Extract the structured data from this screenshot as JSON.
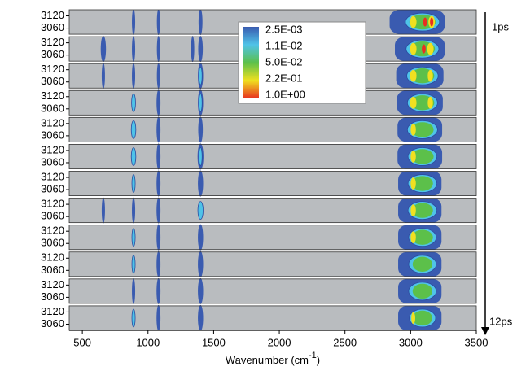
{
  "chart_data": {
    "type": "contour-stack",
    "x_label": "Wavenumber (cm",
    "x_label_sup": "-1",
    "x_label_end": ")",
    "xlim": [
      400,
      3500
    ],
    "xticks": [
      500,
      1000,
      1500,
      2000,
      2500,
      3000,
      3500
    ],
    "panel_ylim": [
      3030,
      3150
    ],
    "panel_yticks": [
      3060,
      3120
    ],
    "time_start": "1ps",
    "time_end": "12ps",
    "background": "#b9bcbf",
    "colorbar": {
      "labels": [
        "2.5E-03",
        "1.1E-02",
        "5.0E-02",
        "2.2E-01",
        "1.0E+00"
      ],
      "colors": [
        "#3a5bb0",
        "#4fc3e8",
        "#5cc04a",
        "#f0e020",
        "#e83020"
      ]
    },
    "panels": [
      {
        "features": [
          [
            3050,
            420,
            0
          ],
          [
            3090,
            260,
            1
          ],
          [
            3090,
            200,
            2
          ],
          [
            3020,
            50,
            3
          ],
          [
            3160,
            50,
            3
          ],
          [
            3110,
            30,
            4
          ],
          [
            3160,
            25,
            4
          ],
          [
            890,
            12,
            0
          ],
          [
            1080,
            15,
            0
          ],
          [
            1400,
            30,
            0
          ]
        ]
      },
      {
        "features": [
          [
            3070,
            380,
            0
          ],
          [
            3090,
            250,
            1
          ],
          [
            3090,
            190,
            2
          ],
          [
            3020,
            50,
            3
          ],
          [
            3150,
            50,
            3
          ],
          [
            3100,
            30,
            4
          ],
          [
            660,
            40,
            0
          ],
          [
            890,
            12,
            0
          ],
          [
            1080,
            15,
            0
          ],
          [
            1340,
            20,
            0
          ],
          [
            1400,
            35,
            0
          ]
        ]
      },
      {
        "features": [
          [
            3070,
            360,
            0
          ],
          [
            3090,
            240,
            1
          ],
          [
            3090,
            180,
            2
          ],
          [
            3020,
            50,
            3
          ],
          [
            3150,
            40,
            3
          ],
          [
            660,
            20,
            0
          ],
          [
            890,
            20,
            0
          ],
          [
            1080,
            20,
            0
          ],
          [
            1400,
            40,
            0
          ],
          [
            1400,
            15,
            1
          ]
        ]
      },
      {
        "features": [
          [
            3070,
            350,
            0
          ],
          [
            3090,
            230,
            1
          ],
          [
            3090,
            180,
            2
          ],
          [
            3020,
            50,
            3
          ],
          [
            3150,
            40,
            3
          ],
          [
            890,
            30,
            1
          ],
          [
            1080,
            30,
            0
          ],
          [
            1400,
            40,
            0
          ],
          [
            1400,
            15,
            1
          ]
        ]
      },
      {
        "features": [
          [
            3070,
            340,
            0
          ],
          [
            3090,
            230,
            1
          ],
          [
            3090,
            170,
            2
          ],
          [
            3020,
            40,
            3
          ],
          [
            890,
            35,
            1
          ],
          [
            1080,
            30,
            0
          ],
          [
            1400,
            35,
            0
          ]
        ]
      },
      {
        "features": [
          [
            3070,
            340,
            0
          ],
          [
            3090,
            220,
            1
          ],
          [
            3090,
            170,
            2
          ],
          [
            3020,
            40,
            3
          ],
          [
            890,
            35,
            1
          ],
          [
            1080,
            30,
            0
          ],
          [
            1400,
            45,
            0
          ],
          [
            1400,
            15,
            1
          ]
        ]
      },
      {
        "features": [
          [
            3070,
            330,
            0
          ],
          [
            3090,
            220,
            1
          ],
          [
            3090,
            160,
            2
          ],
          [
            3020,
            40,
            3
          ],
          [
            890,
            25,
            1
          ],
          [
            1080,
            30,
            0
          ],
          [
            1400,
            40,
            0
          ]
        ]
      },
      {
        "features": [
          [
            3070,
            330,
            0
          ],
          [
            3090,
            220,
            1
          ],
          [
            3090,
            160,
            2
          ],
          [
            3020,
            40,
            3
          ],
          [
            660,
            15,
            0
          ],
          [
            890,
            25,
            0
          ],
          [
            1080,
            30,
            0
          ],
          [
            1400,
            40,
            1
          ]
        ]
      },
      {
        "features": [
          [
            3070,
            330,
            0
          ],
          [
            3090,
            210,
            1
          ],
          [
            3090,
            160,
            2
          ],
          [
            3020,
            40,
            3
          ],
          [
            890,
            25,
            1
          ],
          [
            1080,
            30,
            0
          ],
          [
            1400,
            40,
            0
          ]
        ]
      },
      {
        "features": [
          [
            3070,
            330,
            0
          ],
          [
            3090,
            210,
            1
          ],
          [
            3090,
            150,
            2
          ],
          [
            890,
            25,
            1
          ],
          [
            1080,
            30,
            0
          ],
          [
            1400,
            40,
            0
          ]
        ]
      },
      {
        "features": [
          [
            3070,
            330,
            0
          ],
          [
            3090,
            210,
            1
          ],
          [
            3090,
            150,
            2
          ],
          [
            890,
            12,
            0
          ],
          [
            1080,
            30,
            0
          ],
          [
            1400,
            40,
            0
          ]
        ]
      },
      {
        "features": [
          [
            3070,
            330,
            0
          ],
          [
            3090,
            200,
            1
          ],
          [
            3090,
            150,
            2
          ],
          [
            3020,
            30,
            3
          ],
          [
            890,
            25,
            1
          ],
          [
            1080,
            30,
            0
          ],
          [
            1400,
            40,
            0
          ]
        ]
      }
    ]
  }
}
